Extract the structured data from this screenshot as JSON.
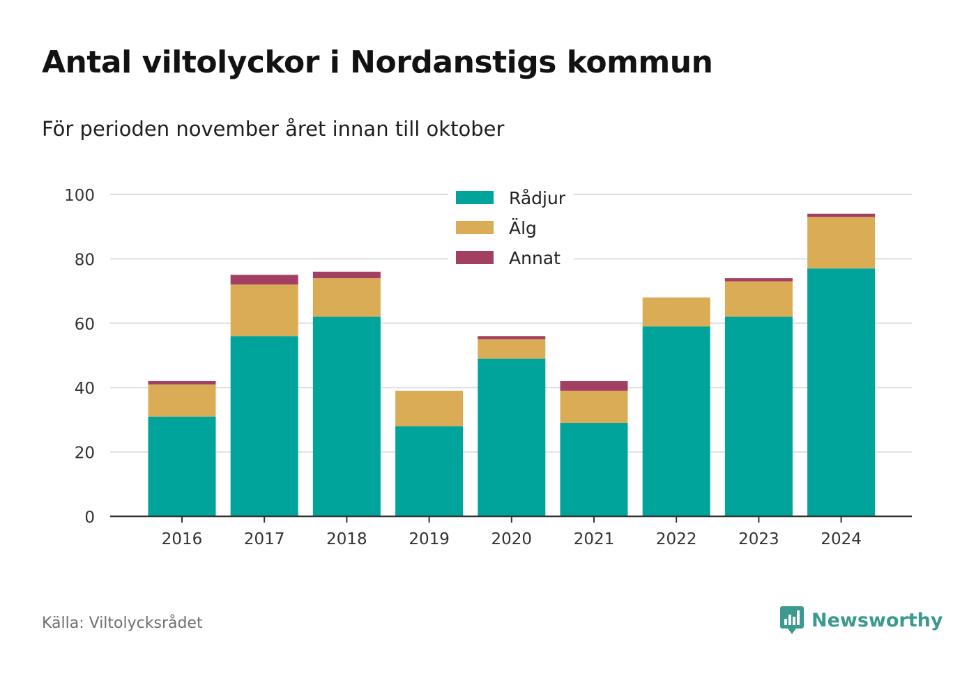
{
  "title": "Antal viltolyckor i Nordanstigs kommun",
  "subtitle": "För perioden november året innan till oktober",
  "source": "Källa: Viltolycksrådet",
  "logo_text": "Newsworthy",
  "colors": {
    "radjur": "#00a49a",
    "alg": "#dbac56",
    "annat": "#a33f63",
    "grid": "#dddddd",
    "axis": "#333333",
    "logo": "#3a9a8f"
  },
  "chart_data": {
    "type": "bar",
    "stacked": true,
    "categories": [
      "2016",
      "2017",
      "2018",
      "2019",
      "2020",
      "2021",
      "2022",
      "2023",
      "2024"
    ],
    "series": [
      {
        "name": "Rådjur",
        "color": "#00a49a",
        "values": [
          31,
          56,
          62,
          28,
          49,
          29,
          59,
          62,
          77
        ]
      },
      {
        "name": "Älg",
        "color": "#dbac56",
        "values": [
          10,
          16,
          12,
          11,
          6,
          10,
          9,
          11,
          16
        ]
      },
      {
        "name": "Annat",
        "color": "#a33f63",
        "values": [
          1,
          3,
          2,
          0,
          1,
          3,
          0,
          1,
          1
        ]
      }
    ],
    "ylim": [
      0,
      100
    ],
    "yticks": [
      0,
      20,
      40,
      60,
      80,
      100
    ],
    "grid": true,
    "legend": "top-center"
  }
}
